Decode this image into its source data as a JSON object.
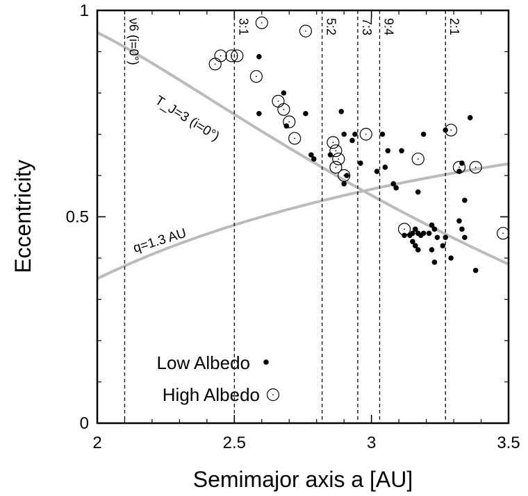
{
  "chart_data": {
    "type": "scatter",
    "title": "",
    "xlabel": "Semimajor axis a  [AU]",
    "ylabel": "Eccentricity",
    "xlim": [
      2,
      3.5
    ],
    "ylim": [
      0,
      1
    ],
    "x_ticks": [
      2,
      2.5,
      3,
      3.5
    ],
    "x_tick_labels": [
      "2",
      "2.5",
      "3",
      "3.5"
    ],
    "y_ticks": [
      0,
      0.5,
      1
    ],
    "y_tick_labels": [
      "0",
      "0.5",
      "1"
    ],
    "grid": false,
    "legend_position": "bottom-left",
    "resonances": [
      {
        "label": "ν6 (i=0°)",
        "a": 2.1
      },
      {
        "label": "3:1",
        "a": 2.5
      },
      {
        "label": "5:2",
        "a": 2.82
      },
      {
        "label": "7:3",
        "a": 2.95
      },
      {
        "label": "9:4",
        "a": 3.03
      },
      {
        "label": "2:1",
        "a": 3.27
      }
    ],
    "curves": [
      {
        "label": "T_J=3  (i=0°)",
        "kind": "tisserand",
        "color": "#bbbbbb"
      },
      {
        "label": "q=1.3 AU",
        "kind": "perihelion",
        "q": 1.3,
        "color": "#bbbbbb"
      }
    ],
    "series": [
      {
        "name": "Low Albedo",
        "marker": "filled-dot",
        "points": [
          [
            2.59,
            0.888
          ],
          [
            2.59,
            0.75
          ],
          [
            2.68,
            0.8
          ],
          [
            2.69,
            0.72
          ],
          [
            2.76,
            0.75
          ],
          [
            2.78,
            0.65
          ],
          [
            2.79,
            0.64
          ],
          [
            2.85,
            0.65
          ],
          [
            2.89,
            0.755
          ],
          [
            2.9,
            0.7
          ],
          [
            2.91,
            0.6
          ],
          [
            2.9,
            0.58
          ],
          [
            2.93,
            0.685
          ],
          [
            2.94,
            0.7
          ],
          [
            2.96,
            0.63
          ],
          [
            3.02,
            0.61
          ],
          [
            3.04,
            0.7
          ],
          [
            3.05,
            0.62
          ],
          [
            3.06,
            0.66
          ],
          [
            3.08,
            0.58
          ],
          [
            3.09,
            0.57
          ],
          [
            3.11,
            0.66
          ],
          [
            3.17,
            0.56
          ],
          [
            3.19,
            0.7
          ],
          [
            3.27,
            0.71
          ],
          [
            3.29,
            0.4
          ],
          [
            3.32,
            0.61
          ],
          [
            3.33,
            0.63
          ],
          [
            3.34,
            0.54
          ],
          [
            3.36,
            0.74
          ],
          [
            3.38,
            0.37
          ],
          [
            3.32,
            0.49
          ],
          [
            3.33,
            0.47
          ],
          [
            3.34,
            0.45
          ],
          [
            3.12,
            0.455
          ],
          [
            3.14,
            0.455
          ],
          [
            3.15,
            0.46
          ],
          [
            3.16,
            0.47
          ],
          [
            3.17,
            0.46
          ],
          [
            3.18,
            0.455
          ],
          [
            3.15,
            0.44
          ],
          [
            3.16,
            0.43
          ],
          [
            3.17,
            0.42
          ],
          [
            3.19,
            0.46
          ],
          [
            3.21,
            0.46
          ],
          [
            3.22,
            0.48
          ],
          [
            3.23,
            0.47
          ],
          [
            3.24,
            0.45
          ],
          [
            3.22,
            0.42
          ],
          [
            3.23,
            0.39
          ],
          [
            3.26,
            0.43
          ],
          [
            3.27,
            0.45
          ]
        ]
      },
      {
        "name": "High Albedo",
        "marker": "open-circle",
        "points": [
          [
            2.43,
            0.87
          ],
          [
            2.45,
            0.89
          ],
          [
            2.49,
            0.89
          ],
          [
            2.51,
            0.89
          ],
          [
            2.58,
            0.84
          ],
          [
            2.6,
            0.97
          ],
          [
            2.66,
            0.78
          ],
          [
            2.68,
            0.76
          ],
          [
            2.7,
            0.73
          ],
          [
            2.72,
            0.69
          ],
          [
            2.76,
            0.95
          ],
          [
            2.86,
            0.68
          ],
          [
            2.87,
            0.66
          ],
          [
            2.88,
            0.64
          ],
          [
            2.87,
            0.62
          ],
          [
            2.9,
            0.6
          ],
          [
            2.98,
            0.7
          ],
          [
            3.12,
            0.47
          ],
          [
            3.17,
            0.64
          ],
          [
            3.29,
            0.71
          ],
          [
            3.32,
            0.62
          ],
          [
            3.38,
            0.62
          ],
          [
            3.48,
            0.46
          ]
        ]
      }
    ]
  }
}
